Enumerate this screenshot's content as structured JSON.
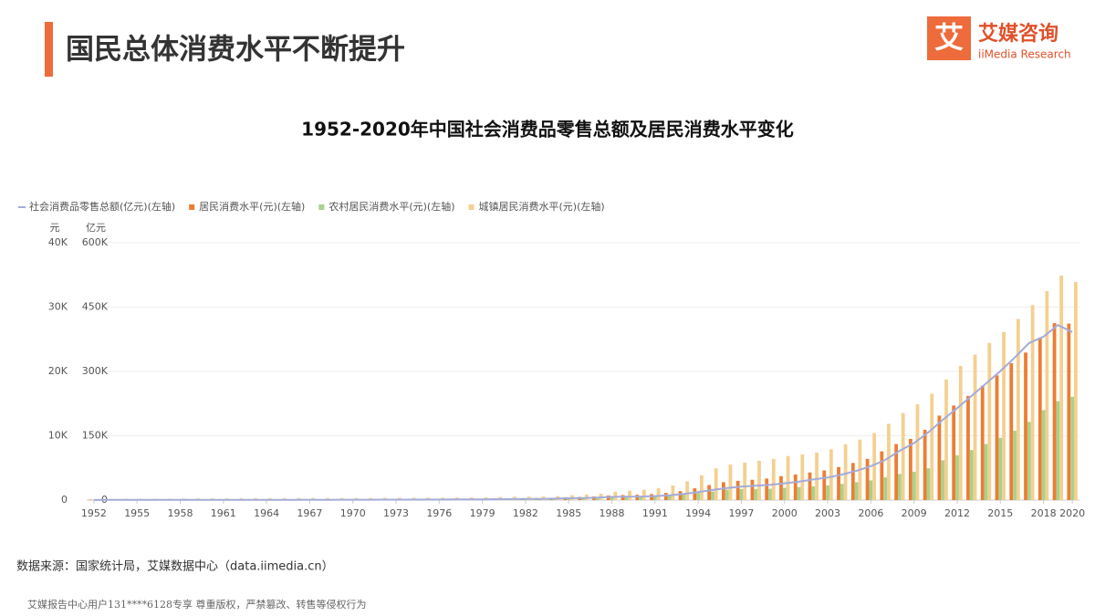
{
  "header": {
    "title": "国民总体消费水平不断提升",
    "logo_mark": "艾",
    "logo_name": "艾媒咨询",
    "logo_sub": "iiMedia Research"
  },
  "chart_data": {
    "type": "bar",
    "title": "1952-2020年中国社会消费品零售总额及居民消费水平变化",
    "y_unit": "元",
    "y2_unit": "亿元",
    "categories": [
      1952,
      null,
      null,
      1955,
      null,
      null,
      1958,
      null,
      null,
      1961,
      null,
      null,
      1964,
      null,
      null,
      1967,
      null,
      null,
      1970,
      null,
      null,
      1973,
      null,
      null,
      1976,
      null,
      null,
      1979,
      null,
      null,
      1982,
      null,
      null,
      1985,
      null,
      null,
      1988,
      null,
      null,
      1991,
      null,
      null,
      1994,
      null,
      null,
      1997,
      null,
      null,
      2000,
      null,
      null,
      2003,
      null,
      null,
      2006,
      null,
      null,
      2009,
      null,
      null,
      2012,
      null,
      null,
      2015,
      null,
      null,
      2018,
      null,
      2020
    ],
    "series": [
      {
        "name": "社会消费品零售总额(亿元)(左轴)",
        "color": "#a3acd9",
        "type": "line",
        "axis": "y2",
        "values": [
          277,
          348,
          381,
          392,
          461,
          474,
          548,
          638,
          696,
          607,
          604,
          605,
          638,
          670,
          733,
          770,
          737,
          801,
          858,
          929,
          1023,
          1107,
          1164,
          1271,
          1339,
          1433,
          1559,
          1800,
          2140,
          2350,
          2570,
          2849,
          3376,
          4305,
          4950,
          5820,
          7440,
          8101,
          8300,
          9416,
          10994,
          14270,
          18623,
          23614,
          28360,
          31253,
          33378,
          35648,
          39106,
          43055,
          48136,
          52516,
          59501,
          68353,
          79145,
          93572,
          114830,
          133048,
          158008,
          187206,
          214433,
          242843,
          271896,
          300931,
          332316,
          366262,
          380987,
          408017,
          391981
        ]
      },
      {
        "name": "居民消费水平(元)(左轴)",
        "color": "#ed7d31",
        "type": "bar",
        "values": [
          80,
          91,
          92,
          99,
          104,
          108,
          111,
          104,
          111,
          125,
          124,
          124,
          128,
          133,
          139,
          142,
          139,
          142,
          147,
          150,
          156,
          164,
          167,
          172,
          177,
          181,
          184,
          208,
          238,
          264,
          288,
          316,
          361,
          446,
          497,
          565,
          714,
          788,
          831,
          932,
          1116,
          1393,
          1833,
          2330,
          2789,
          3002,
          3159,
          3346,
          3721,
          3987,
          4301,
          4606,
          5138,
          5771,
          6416,
          7572,
          8707,
          9514,
          10919,
          13134,
          14699,
          16190,
          17778,
          19397,
          21285,
          22935,
          25245,
          27504,
          27439
        ]
      },
      {
        "name": "农村居民消费水平(元)(左轴)",
        "color": "#a9d18e",
        "type": "bar",
        "values": [
          65,
          72,
          72,
          76,
          78,
          82,
          83,
          65,
          68,
          82,
          88,
          89,
          93,
          100,
          106,
          108,
          104,
          104,
          114,
          116,
          116,
          123,
          123,
          124,
          125,
          124,
          138,
          159,
          178,
          201,
          223,
          250,
          287,
          347,
          376,
          417,
          508,
          553,
          627,
          661,
          712,
          840,
          1105,
          1344,
          1626,
          1722,
          1730,
          1766,
          1917,
          2032,
          2157,
          2292,
          2521,
          2784,
          3066,
          3538,
          4065,
          4402,
          4941,
          6187,
          6964,
          7773,
          8711,
          9679,
          10783,
          12145,
          13985,
          15382,
          16063
        ]
      },
      {
        "name": "城镇居民消费水平(元)(左轴)",
        "color": "#f4d08f",
        "type": "bar",
        "values": [
          154,
          188,
          198,
          200,
          210,
          222,
          235,
          260,
          268,
          262,
          278,
          285,
          294,
          309,
          328,
          325,
          327,
          327,
          331,
          336,
          345,
          360,
          367,
          378,
          386,
          397,
          405,
          425,
          489,
          521,
          536,
          558,
          618,
          765,
          872,
          998,
          1311,
          1466,
          1596,
          1840,
          2262,
          2924,
          3852,
          4931,
          5532,
          5823,
          6109,
          6405,
          6850,
          7113,
          7387,
          7901,
          8679,
          9410,
          10423,
          11855,
          13526,
          14904,
          16546,
          18750,
          20869,
          22620,
          24430,
          26119,
          28154,
          30323,
          32483,
          34900,
          33900
        ]
      }
    ],
    "ylim": [
      0,
      40000
    ],
    "yticks": [
      0,
      {
        "value": 10000,
        "label": "10K"
      },
      {
        "value": 20000,
        "label": "20K"
      },
      {
        "value": 30000,
        "label": "30K"
      },
      {
        "value": 40000,
        "label": "40K"
      }
    ],
    "y2lim": [
      0,
      600000
    ],
    "y2ticks": [
      0,
      {
        "value": 150000,
        "label": "150K"
      },
      {
        "value": 300000,
        "label": "300K"
      },
      {
        "value": 450000,
        "label": "450K"
      },
      {
        "value": 600000,
        "label": "600K"
      }
    ],
    "grid": true,
    "legend": "top-left"
  },
  "footer": {
    "source": "数据来源：国家统计局，艾媒数据中心（data.iimedia.cn）",
    "copyright": "艾媒报告中心用户131****6128专享 尊重版权，严禁篡改、转售等侵权行为"
  }
}
